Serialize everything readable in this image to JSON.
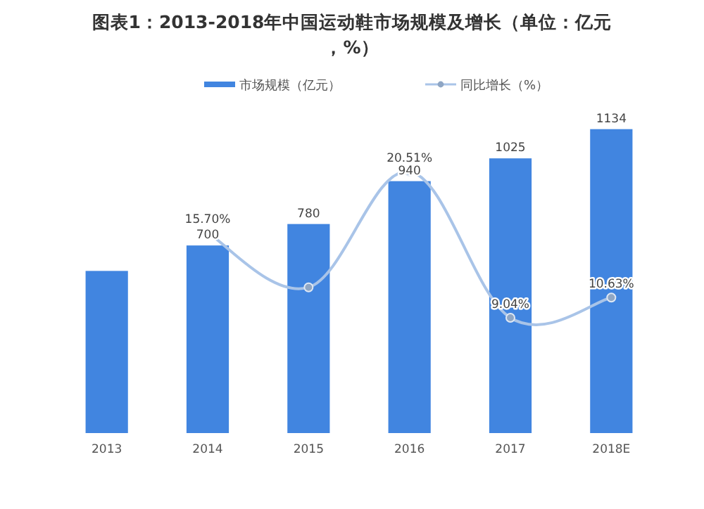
{
  "chart_data": {
    "type": "bar",
    "title": "图表1：2013-2018年中国运动鞋市场规模及增长（单位：亿元，%）",
    "categories": [
      "2013",
      "2014",
      "2015",
      "2016",
      "2017",
      "2018E"
    ],
    "legend": "top",
    "tick_labels": "x",
    "series": [
      {
        "name": "市场规模（亿元）",
        "color": "#4185e0",
        "values": [
          605,
          700,
          780,
          940,
          1025,
          1134
        ],
        "value_labels": [
          null,
          "700",
          "780",
          "940",
          "1025",
          "1134"
        ]
      },
      {
        "name": "同比增长（%）",
        "type": "line",
        "axis": "y2",
        "color": "#a9c4e8",
        "marker": "circle",
        "values": [
          null,
          15.7,
          11.43,
          20.51,
          9.04,
          10.63
        ],
        "value_labels": [
          null,
          "15.70%",
          null,
          "20.51%",
          "9.04%",
          "10.63%"
        ]
      }
    ]
  }
}
